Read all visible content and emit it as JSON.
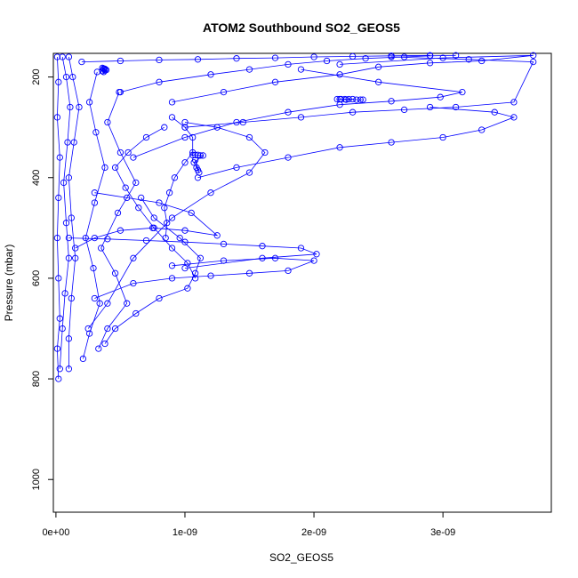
{
  "chart_data": {
    "type": "scatter",
    "title": "ATOM2 Southbound SO2_GEOS5",
    "xlabel": "SO2_GEOS5",
    "ylabel": "Pressure (mbar)",
    "xlim": [
      -2e-11,
      3.84e-09
    ],
    "ylim": [
      1065,
      153
    ],
    "y_reversed": true,
    "x_ticks": [
      0,
      1e-09,
      2e-09,
      3e-09
    ],
    "x_tick_labels": [
      "0e+00",
      "1e-09",
      "2e-09",
      "3e-09"
    ],
    "y_ticks": [
      200,
      400,
      600,
      800,
      1000
    ],
    "y_tick_labels": [
      "200",
      "400",
      "600",
      "800",
      "1000"
    ],
    "grid": false,
    "legend": "none",
    "marker": "open-circle",
    "color": "#0000ff",
    "series": [
      {
        "x": [
          2e-11,
          1e-11,
          3e-11,
          2e-11,
          1e-11,
          2e-11,
          3e-11,
          1e-11,
          2e-11,
          1e-11
        ],
        "y": [
          800,
          740,
          680,
          600,
          520,
          440,
          360,
          280,
          210,
          160
        ]
      },
      {
        "x": [
          3e-11,
          5e-11,
          7e-11,
          1e-10,
          8e-11,
          6e-11,
          9e-11,
          1.1e-10,
          8e-11,
          5e-11
        ],
        "y": [
          780,
          700,
          630,
          560,
          490,
          410,
          330,
          260,
          200,
          160
        ]
      },
      {
        "x": [
          1e-10,
          1e-10,
          1.2e-10,
          1.5e-10,
          1.2e-10,
          1e-10,
          1.4e-10,
          1.8e-10,
          1.3e-10,
          1e-10
        ],
        "y": [
          780,
          720,
          640,
          560,
          480,
          400,
          330,
          260,
          200,
          160
        ]
      },
      {
        "x": [
          2.1e-10,
          2.6e-10,
          3.4e-10,
          2.9e-10,
          2.3e-10,
          3e-10,
          3.8e-10,
          3.1e-10,
          2.6e-10,
          3.2e-10
        ],
        "y": [
          760,
          710,
          650,
          580,
          520,
          450,
          380,
          310,
          250,
          190
        ]
      },
      {
        "x": [
          3.3e-10,
          4e-10,
          5.5e-10,
          4.6e-10,
          3.5e-10,
          4.8e-10,
          6.2e-10,
          5e-10,
          4e-10,
          4.9e-10
        ],
        "y": [
          740,
          700,
          650,
          590,
          540,
          470,
          410,
          350,
          290,
          230
        ]
      },
      {
        "x": [
          3.8e-10,
          4.6e-10,
          6.2e-10,
          8e-10,
          1.02e-09,
          1.08e-09,
          1.12e-09,
          9.6e-10,
          7.6e-10,
          6.6e-10
        ],
        "y": [
          730,
          700,
          670,
          640,
          620,
          590,
          560,
          520,
          480,
          440
        ]
      },
      {
        "x": [
          1.08e-09,
          1.02e-09,
          9e-10,
          7.6e-10,
          6.4e-10,
          5.4e-10,
          4.6e-10,
          5.6e-10,
          7e-10,
          8.4e-10
        ],
        "y": [
          600,
          570,
          540,
          500,
          460,
          420,
          380,
          350,
          320,
          300
        ]
      },
      {
        "x": [
          8.5e-10,
          8.6e-10,
          8.4e-10,
          8.8e-10,
          9.2e-10,
          1e-09,
          1.06e-09,
          1.06e-09,
          1e-09,
          9e-10
        ],
        "y": [
          520,
          490,
          460,
          430,
          400,
          370,
          350,
          320,
          300,
          280
        ]
      },
      {
        "x": [
          2.5e-10,
          4e-10,
          6e-10,
          9e-10,
          1.2e-09,
          1.5e-09,
          1.62e-09,
          1.5e-09,
          1.25e-09,
          1e-09
        ],
        "y": [
          700,
          650,
          560,
          480,
          430,
          390,
          350,
          320,
          300,
          290
        ]
      },
      {
        "x": [
          1.1e-09,
          1.4e-09,
          1.8e-09,
          2.2e-09,
          2.6e-09,
          3e-09,
          3.3e-09,
          3.55e-09,
          3.4e-09,
          2.9e-09
        ],
        "y": [
          400,
          380,
          360,
          340,
          330,
          320,
          305,
          280,
          270,
          260
        ]
      },
      {
        "x": [
          1e-09,
          1.45e-09,
          1.9e-09,
          2.3e-09,
          2.7e-09,
          3.1e-09,
          3.55e-09,
          3.7e-09,
          3.2e-09,
          2.6e-09
        ],
        "y": [
          300,
          290,
          280,
          270,
          265,
          260,
          250,
          170,
          165,
          160
        ]
      },
      {
        "x": [
          6e-10,
          1e-09,
          1.4e-09,
          1.8e-09,
          2.2e-09,
          2.6e-09,
          2.98e-09,
          3.15e-09,
          2.5e-09,
          1.9e-09
        ],
        "y": [
          360,
          320,
          290,
          270,
          255,
          248,
          240,
          230,
          210,
          185
        ]
      },
      {
        "x": [
          9e-10,
          1.3e-09,
          1.7e-09,
          2.2e-09,
          2.5e-09,
          2.9e-09,
          3.3e-09,
          3.7e-09,
          3e-09,
          2.2e-09
        ],
        "y": [
          250,
          230,
          210,
          195,
          180,
          172,
          168,
          157,
          162,
          175
        ]
      },
      {
        "x": [
          5e-10,
          8e-10,
          1.2e-09,
          1.5e-09,
          1.8e-09,
          2.1e-09,
          2.4e-09,
          2.7e-09,
          2.9e-09,
          3.1e-09
        ],
        "y": [
          230,
          210,
          195,
          185,
          175,
          168,
          163,
          160,
          158,
          157
        ]
      },
      {
        "x": [
          2e-10,
          5e-10,
          8e-10,
          1.1e-09,
          1.4e-09,
          1.7e-09,
          2e-09,
          2.3e-09,
          2.6e-09,
          2.9e-09
        ],
        "y": [
          170,
          168,
          166,
          165,
          163,
          162,
          160,
          159,
          158,
          157
        ]
      },
      {
        "x": [
          1e-10,
          4e-10,
          7e-10,
          1e-09,
          1.3e-09,
          1.6e-09,
          1.9e-09,
          2.02e-09,
          1.6e-09,
          1e-09
        ],
        "y": [
          520,
          522,
          525,
          528,
          532,
          536,
          540,
          552,
          560,
          580
        ]
      },
      {
        "x": [
          3e-10,
          6e-10,
          9e-10,
          1.2e-09,
          1.5e-09,
          1.8e-09,
          2e-09,
          1.7e-09,
          1.3e-09,
          9e-10
        ],
        "y": [
          640,
          610,
          600,
          595,
          590,
          585,
          565,
          560,
          565,
          575
        ]
      },
      {
        "x": [
          1.5e-10,
          3e-10,
          5e-10,
          7.5e-10,
          1e-09,
          1.25e-09,
          1.05e-09,
          8e-10,
          5.5e-10,
          3e-10
        ],
        "y": [
          540,
          520,
          505,
          500,
          505,
          515,
          470,
          450,
          440,
          430
        ]
      },
      {
        "x": [
          2.18e-09,
          2.21e-09,
          2.24e-09,
          2.27e-09,
          2.3e-09,
          2.33e-09,
          2.36e-09,
          2.38e-09,
          2.2e-09,
          2.25e-09
        ],
        "y": [
          244,
          244,
          244,
          244,
          244,
          245,
          245,
          245,
          244,
          245
        ]
      },
      {
        "x": [
          1.06e-09,
          1.08e-09,
          1.1e-09,
          1.12e-09,
          1.14e-09,
          1.07e-09,
          1.09e-09,
          1.11e-09,
          1.08e-09,
          1.1e-09
        ],
        "y": [
          355,
          355,
          355,
          356,
          356,
          370,
          380,
          390,
          365,
          385
        ]
      },
      {
        "x": [
          3.6e-10,
          3.7e-10,
          3.8e-10,
          3.6e-10,
          3.7e-10,
          3.8e-10,
          3.9e-10,
          3.6e-10,
          3.7e-10,
          3.8e-10
        ],
        "y": [
          182,
          184,
          186,
          188,
          190,
          184,
          186,
          188,
          183,
          187
        ]
      }
    ]
  }
}
